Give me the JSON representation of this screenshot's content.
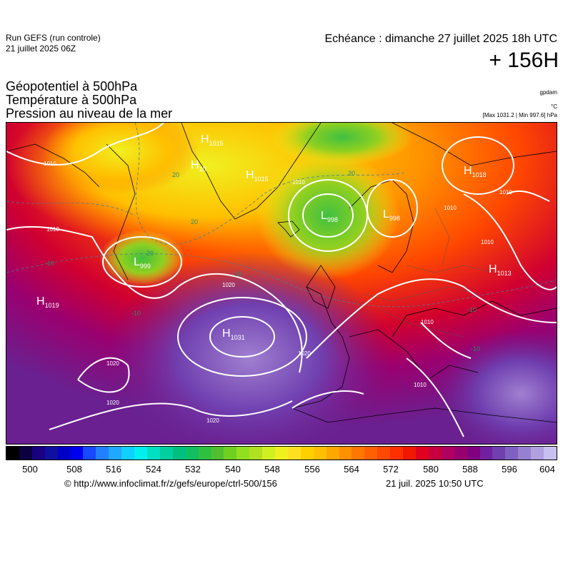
{
  "header": {
    "run": "Run GEFS (run controle)",
    "run_date": "21 juillet 2025 06Z",
    "valid": "Echéance : dimanche 27 juillet 2025 18h UTC",
    "lead": "+ 156H"
  },
  "titles": {
    "line1": "Géopotentiel à 500hPa",
    "line2": "Température à 500hPa",
    "line3": "Pression au niveau de la mer"
  },
  "units": {
    "geopot": "gpdam",
    "temp": "°C",
    "pressure_range": "[Max 1031.2 | Min 997.6] hPa"
  },
  "pressure_centers": [
    {
      "type": "H",
      "value": "1015"
    },
    {
      "type": "H",
      "value": "10"
    },
    {
      "type": "H",
      "value": "1015"
    },
    {
      "type": "L",
      "value": "998"
    },
    {
      "type": "L",
      "value": "998"
    },
    {
      "type": "H",
      "value": "1018"
    },
    {
      "type": "L",
      "value": "999"
    },
    {
      "type": "H",
      "value": "1013"
    },
    {
      "type": "H",
      "value": "1019"
    },
    {
      "type": "H",
      "value": "1031"
    },
    {
      "type": "L",
      "value": ""
    }
  ],
  "isobar_labels": [
    "1010",
    "1010",
    "1010",
    "1010",
    "1020",
    "1020",
    "1020",
    "1020",
    "1020",
    "1010",
    "1010",
    "1010",
    "1010"
  ],
  "temp_labels": [
    "20",
    "20",
    "20",
    "20",
    "-10",
    "-10",
    "-10",
    "-10",
    "-10"
  ],
  "colorbar": {
    "ticks": [
      "500",
      "508",
      "516",
      "524",
      "532",
      "540",
      "548",
      "556",
      "564",
      "572",
      "580",
      "588",
      "596",
      "604"
    ],
    "colors": [
      "#000000",
      "#0c0040",
      "#180080",
      "#1010a0",
      "#0000c8",
      "#0000f0",
      "#1848ff",
      "#2080ff",
      "#20a8ff",
      "#10d0ff",
      "#00f0f0",
      "#00e0c0",
      "#00d0a0",
      "#00c080",
      "#10c060",
      "#30c040",
      "#50c030",
      "#70d020",
      "#90e020",
      "#b0e020",
      "#d0f020",
      "#f0f020",
      "#ffe020",
      "#ffd000",
      "#ffc000",
      "#ffa800",
      "#ff9000",
      "#ff7800",
      "#ff6000",
      "#ff4800",
      "#ff3000",
      "#f01800",
      "#e00020",
      "#c80040",
      "#b00060",
      "#980070",
      "#800080",
      "#7020a0",
      "#7040b0",
      "#8060c0",
      "#9880d0",
      "#b0a0e0",
      "#c8c0f0"
    ]
  },
  "footer": {
    "source": "© http://www.infoclimat.fr/z/gefs/europe/ctrl-500/156",
    "generated": "21 juil. 2025 10:50 UTC"
  }
}
